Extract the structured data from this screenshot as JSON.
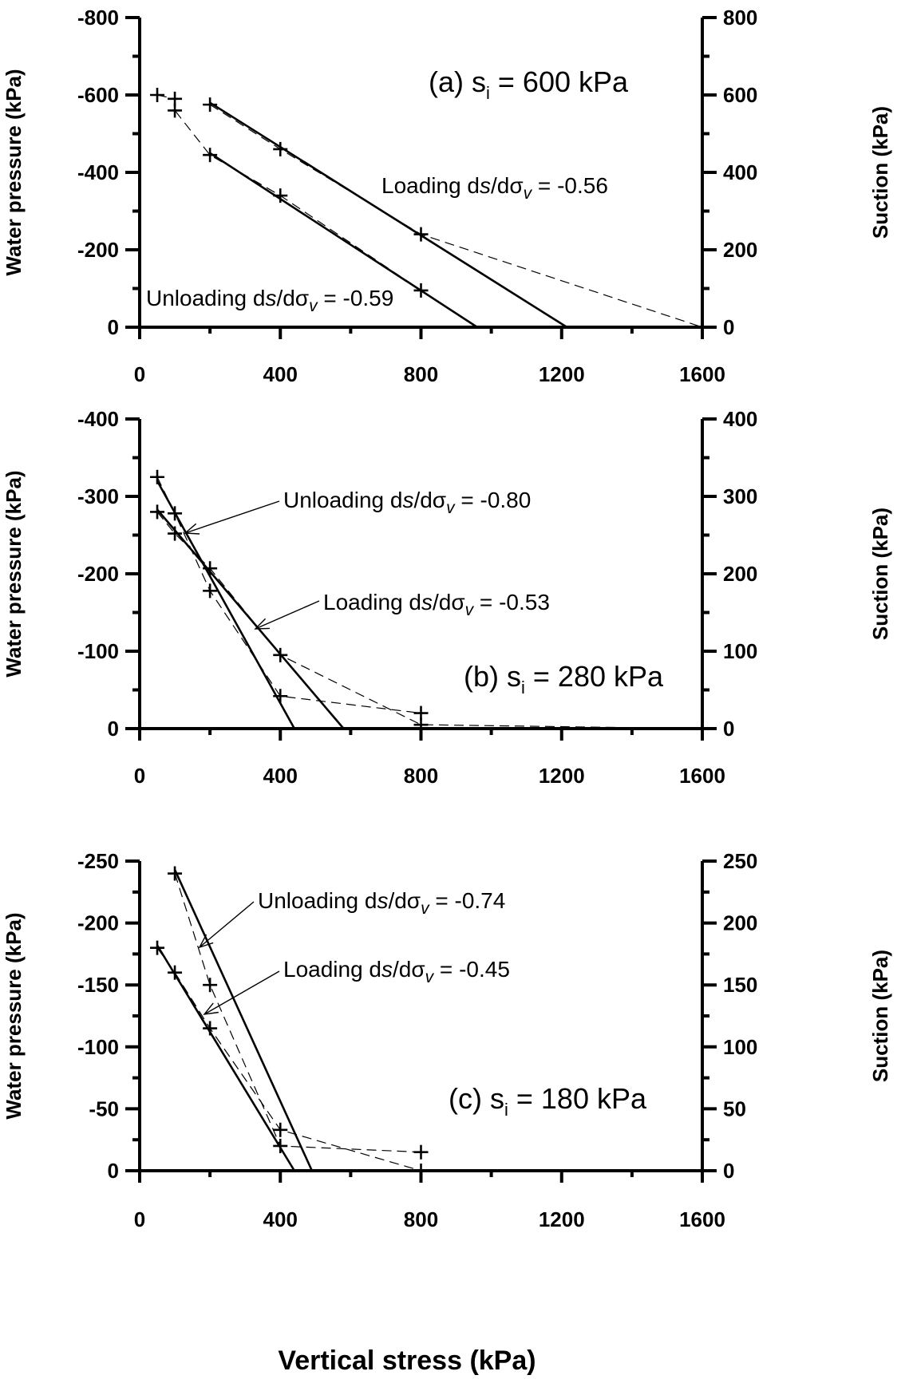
{
  "figure": {
    "x_axis_title": "Vertical stress (kPa)"
  },
  "chart_data": [
    {
      "type": "line",
      "panel_label": "(a) s",
      "panel_subscript": "i",
      "panel_value": " = 600 kPa",
      "ylabel_left": "Water pressure (kPa)",
      "ylabel_right": "Suction (kPa)",
      "xlim": [
        0,
        1600
      ],
      "x_ticks": [
        "0",
        "400",
        "800",
        "1200",
        "1600"
      ],
      "ylim": [
        0,
        800
      ],
      "left_ticks": [
        "0",
        "-200",
        "-400",
        "-600",
        "-800"
      ],
      "right_ticks": [
        "0",
        "200",
        "400",
        "600",
        "800"
      ],
      "tick_values": [
        0,
        200,
        400,
        600,
        800
      ],
      "series": [
        {
          "role": "loading-points",
          "x": [
            200,
            400,
            800,
            1600
          ],
          "y": [
            575,
            460,
            240,
            0
          ]
        },
        {
          "role": "unloading-points",
          "x": [
            50,
            100,
            100,
            200,
            400,
            800
          ],
          "y": [
            600,
            590,
            560,
            445,
            340,
            95
          ]
        },
        {
          "role": "loading-fit",
          "x": [
            200,
            1215
          ],
          "y": [
            580,
            0
          ]
        },
        {
          "role": "unloading-fit",
          "x": [
            200,
            960
          ],
          "y": [
            450,
            0
          ]
        }
      ],
      "annotations": [
        {
          "prefix": "Loading d",
          "value": " = -0.56"
        },
        {
          "prefix": "Unloading d",
          "value": " = -0.59"
        }
      ]
    },
    {
      "type": "line",
      "panel_label": "(b) s",
      "panel_subscript": "i",
      "panel_value": " = 280 kPa",
      "ylabel_left": "Water pressure (kPa)",
      "ylabel_right": "Suction (kPa)",
      "xlim": [
        0,
        1600
      ],
      "x_ticks": [
        "0",
        "400",
        "800",
        "1200",
        "1600"
      ],
      "ylim": [
        0,
        400
      ],
      "left_ticks": [
        "0",
        "-100",
        "-200",
        "-300",
        "-400"
      ],
      "right_ticks": [
        "0",
        "100",
        "200",
        "300",
        "400"
      ],
      "tick_values": [
        0,
        100,
        200,
        300,
        400
      ],
      "series": [
        {
          "role": "loading-points",
          "x": [
            50,
            100,
            200,
            400,
            800,
            1600
          ],
          "y": [
            280,
            252,
            207,
            95,
            5,
            0
          ]
        },
        {
          "role": "unloading-points",
          "x": [
            50,
            100,
            200,
            400,
            800
          ],
          "y": [
            325,
            278,
            178,
            42,
            20
          ]
        },
        {
          "role": "loading-fit",
          "x": [
            50,
            580
          ],
          "y": [
            283,
            0
          ]
        },
        {
          "role": "unloading-fit",
          "x": [
            50,
            440
          ],
          "y": [
            320,
            0
          ]
        }
      ],
      "annotations": [
        {
          "prefix": "Unloading d",
          "value": " = -0.80"
        },
        {
          "prefix": "Loading d",
          "value": " = -0.53"
        }
      ]
    },
    {
      "type": "line",
      "panel_label": "(c) s",
      "panel_subscript": "i",
      "panel_value": " = 180 kPa",
      "ylabel_left": "Water pressure (kPa)",
      "ylabel_right": "Suction (kPa)",
      "xlim": [
        0,
        1600
      ],
      "x_ticks": [
        "0",
        "400",
        "800",
        "1200",
        "1600"
      ],
      "ylim": [
        0,
        250
      ],
      "left_ticks": [
        "0",
        "-50",
        "-100",
        "-150",
        "-200",
        "-250"
      ],
      "right_ticks": [
        "0",
        "50",
        "100",
        "150",
        "200",
        "250"
      ],
      "tick_values": [
        0,
        50,
        100,
        150,
        200,
        250
      ],
      "series": [
        {
          "role": "loading-points",
          "x": [
            50,
            100,
            200,
            400,
            800,
            1600
          ],
          "y": [
            180,
            160,
            115,
            33,
            0,
            0
          ]
        },
        {
          "role": "unloading-points",
          "x": [
            100,
            200,
            400,
            800
          ],
          "y": [
            240,
            150,
            20,
            15
          ]
        },
        {
          "role": "loading-fit",
          "x": [
            50,
            440
          ],
          "y": [
            182,
            0
          ]
        },
        {
          "role": "unloading-fit",
          "x": [
            100,
            490
          ],
          "y": [
            243,
            0
          ]
        }
      ],
      "annotations": [
        {
          "prefix": "Unloading d",
          "value": " = -0.74"
        },
        {
          "prefix": "Loading d",
          "value": " = -0.45"
        }
      ]
    }
  ]
}
